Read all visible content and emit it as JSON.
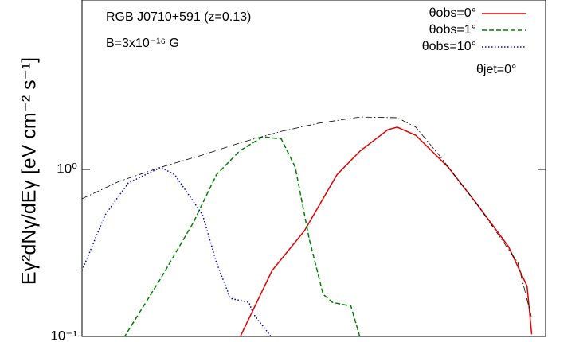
{
  "chart_data": {
    "type": "line",
    "annotations": [
      "RGB J0710+591 (z=0.13)",
      "B=3x10⁻¹⁶ G",
      "θjet=0°"
    ],
    "y_label": "Eγ²dNγ/dEγ [eV cm⁻² s⁻¹]",
    "ylog": true,
    "ylim": [
      0.1,
      10
    ],
    "yticks": [
      {
        "value": 1,
        "label": "10⁰"
      },
      {
        "value": 0.1,
        "label": "10⁻¹"
      }
    ],
    "xlim": [
      0,
      100
    ],
    "legend": "top-right",
    "series": [
      {
        "name": "θobs=0°",
        "color": "#e00000",
        "dash": "solid",
        "x": [
          34,
          41,
          48,
          55,
          60,
          66,
          68,
          72,
          79,
          85,
          92,
          96,
          97
        ],
        "values": [
          0.098,
          0.248,
          0.43,
          0.93,
          1.29,
          1.73,
          1.79,
          1.6,
          1.03,
          0.63,
          0.345,
          0.2,
          0.103
        ]
      },
      {
        "name": "θobs=1°",
        "color": "#008000",
        "dash": "dashed",
        "x": [
          9,
          17,
          24,
          29,
          34,
          39,
          43,
          46,
          49,
          52,
          54,
          58,
          60
        ],
        "values": [
          0.098,
          0.223,
          0.48,
          0.93,
          1.29,
          1.57,
          1.52,
          1.03,
          0.385,
          0.179,
          0.16,
          0.152,
          0.098
        ]
      },
      {
        "name": "θobs=10°",
        "color": "#0000cc",
        "dash": "dotted",
        "x": [
          0,
          5,
          10,
          17,
          20,
          26,
          29,
          32,
          36,
          37,
          41
        ],
        "values": [
          0.248,
          0.535,
          0.83,
          1.03,
          0.93,
          0.535,
          0.277,
          0.169,
          0.16,
          0.136,
          0.098
        ]
      },
      {
        "color": "#000000",
        "dash": "dashdot",
        "x": [
          0,
          8,
          17,
          26,
          34,
          43,
          51,
          60,
          68,
          72,
          77,
          85,
          94,
          97
        ],
        "values": [
          0.667,
          0.848,
          1.03,
          1.22,
          1.44,
          1.69,
          1.89,
          2.06,
          2.04,
          1.79,
          1.22,
          0.63,
          0.277,
          0.129
        ]
      }
    ]
  }
}
